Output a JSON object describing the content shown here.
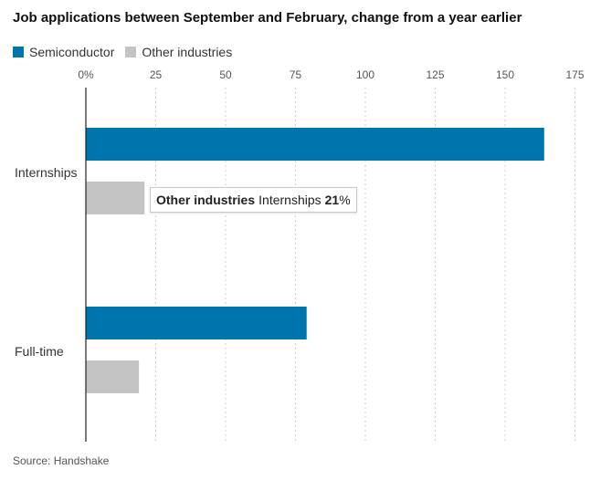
{
  "chart_data": {
    "type": "bar",
    "orientation": "horizontal",
    "title": "Job applications between September and February, change from a year earlier",
    "categories": [
      "Internships",
      "Full-time"
    ],
    "series": [
      {
        "name": "Semiconductor",
        "color": "#0074ad",
        "values": [
          164,
          79
        ]
      },
      {
        "name": "Other industries",
        "color": "#c4c4c4",
        "values": [
          21,
          19
        ]
      }
    ],
    "x_ticks": [
      "0%",
      "25",
      "50",
      "75",
      "100",
      "125",
      "150",
      "175"
    ],
    "xlim": [
      0,
      175
    ],
    "grid": "vertical",
    "legend_position": "top-left",
    "source": "Source: Handshake",
    "tooltip": {
      "series": "Other industries",
      "category": "Internships",
      "value_number": "21",
      "value_unit": "%"
    }
  }
}
